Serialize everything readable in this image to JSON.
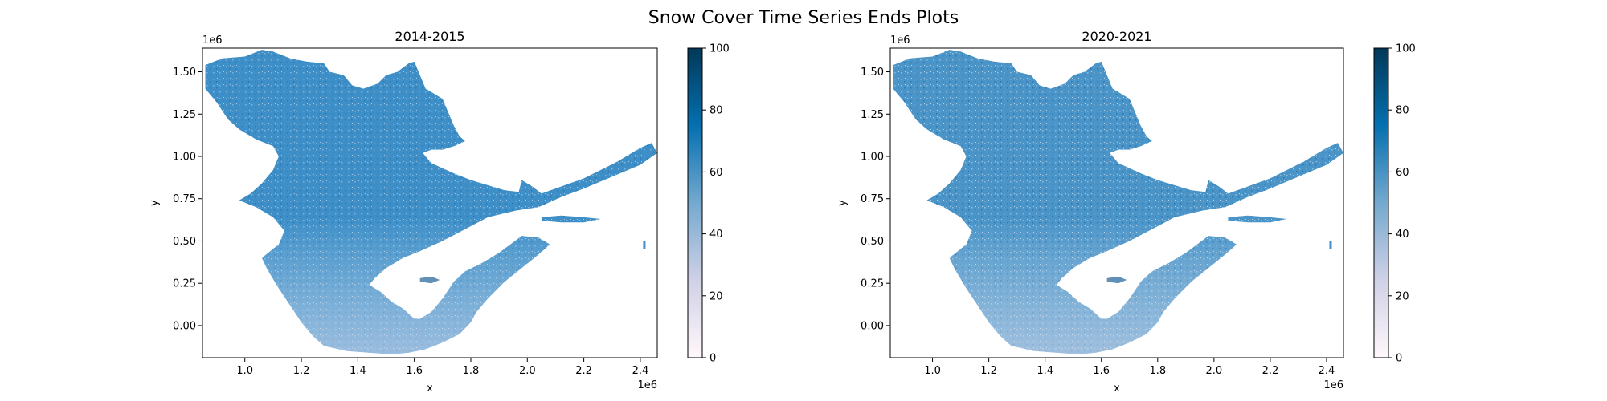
{
  "figure": {
    "suptitle": "Snow Cover Time Series Ends Plots"
  },
  "chart_data": [
    {
      "type": "heatmap",
      "title": "2014-2015",
      "xlabel": "x",
      "ylabel": "y",
      "x_offset_label": "1e6",
      "y_offset_label": "1e6",
      "xlim": [
        0.85,
        2.46
      ],
      "ylim": [
        -0.19,
        1.64
      ],
      "xticks": [
        1.0,
        1.2,
        1.4,
        1.6,
        1.8,
        2.0,
        2.2,
        2.4
      ],
      "xtick_labels": [
        "1.0",
        "1.2",
        "1.4",
        "1.6",
        "1.8",
        "2.0",
        "2.2",
        "2.4"
      ],
      "yticks": [
        0.0,
        0.25,
        0.5,
        0.75,
        1.0,
        1.25,
        1.5
      ],
      "ytick_labels": [
        "0.00",
        "0.25",
        "0.50",
        "0.75",
        "1.00",
        "1.25",
        "1.50"
      ],
      "colorbar": {
        "min": 0,
        "max": 100,
        "ticks": [
          0,
          20,
          40,
          60,
          80,
          100
        ],
        "tick_labels": [
          "0",
          "20",
          "40",
          "60",
          "80",
          "100"
        ],
        "colormap": "PuBu",
        "colors": [
          "#fff7fb",
          "#d0d1e6",
          "#74a9cf",
          "#0570b0",
          "#023858"
        ]
      },
      "typical_value": 62,
      "fill_color": "#3e8fc8"
    },
    {
      "type": "heatmap",
      "title": "2020-2021",
      "xlabel": "x",
      "ylabel": "y",
      "x_offset_label": "1e6",
      "y_offset_label": "1e6",
      "xlim": [
        0.85,
        2.46
      ],
      "ylim": [
        -0.19,
        1.64
      ],
      "xticks": [
        1.0,
        1.2,
        1.4,
        1.6,
        1.8,
        2.0,
        2.2,
        2.4
      ],
      "xtick_labels": [
        "1.0",
        "1.2",
        "1.4",
        "1.6",
        "1.8",
        "2.0",
        "2.2",
        "2.4"
      ],
      "yticks": [
        0.0,
        0.25,
        0.5,
        0.75,
        1.0,
        1.25,
        1.5
      ],
      "ytick_labels": [
        "0.00",
        "0.25",
        "0.50",
        "0.75",
        "1.00",
        "1.25",
        "1.50"
      ],
      "colorbar": {
        "min": 0,
        "max": 100,
        "ticks": [
          0,
          20,
          40,
          60,
          80,
          100
        ],
        "tick_labels": [
          "0",
          "20",
          "40",
          "60",
          "80",
          "100"
        ],
        "colormap": "PuBu",
        "colors": [
          "#fff7fb",
          "#d0d1e6",
          "#74a9cf",
          "#0570b0",
          "#023858"
        ]
      },
      "typical_value": 58,
      "fill_color": "#4a94c8"
    }
  ]
}
